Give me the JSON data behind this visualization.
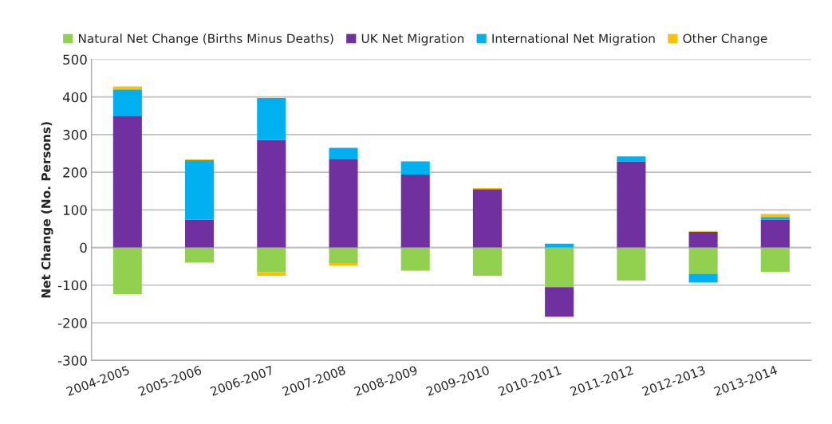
{
  "chart_data": {
    "type": "bar",
    "stacked": true,
    "ylabel": "Net Change (No. Persons)",
    "categories": [
      "2004-2005",
      "2005-2006",
      "2006-2007",
      "2007-2008",
      "2008-2009",
      "2009-2010",
      "2010-2011",
      "2011-2012",
      "2012-2013",
      "2013-2014"
    ],
    "series": [
      {
        "name": "Natural Net Change (Births Minus Deaths)",
        "color": "#92d050",
        "values": [
          -124,
          -40,
          -65,
          -41,
          -60,
          -75,
          -105,
          -88,
          -70,
          -65
        ]
      },
      {
        "name": "UK Net Migration",
        "color": "#7030a0",
        "values": [
          350,
          74,
          286,
          234,
          194,
          155,
          -79,
          229,
          42,
          74
        ]
      },
      {
        "name": "International Net Migration",
        "color": "#00b0f0",
        "values": [
          70,
          158,
          111,
          31,
          35,
          null,
          10,
          13,
          -23,
          7
        ]
      },
      {
        "name": "Other Change",
        "color": "#ffc000",
        "values": [
          8,
          2,
          -10,
          -7,
          -2,
          3,
          -2,
          null,
          2,
          8
        ]
      }
    ],
    "ylim": [
      -300,
      500
    ],
    "yticks": [
      -300,
      -200,
      -100,
      0,
      100,
      200,
      300,
      400,
      500
    ],
    "grid": "y",
    "legend": "top"
  }
}
